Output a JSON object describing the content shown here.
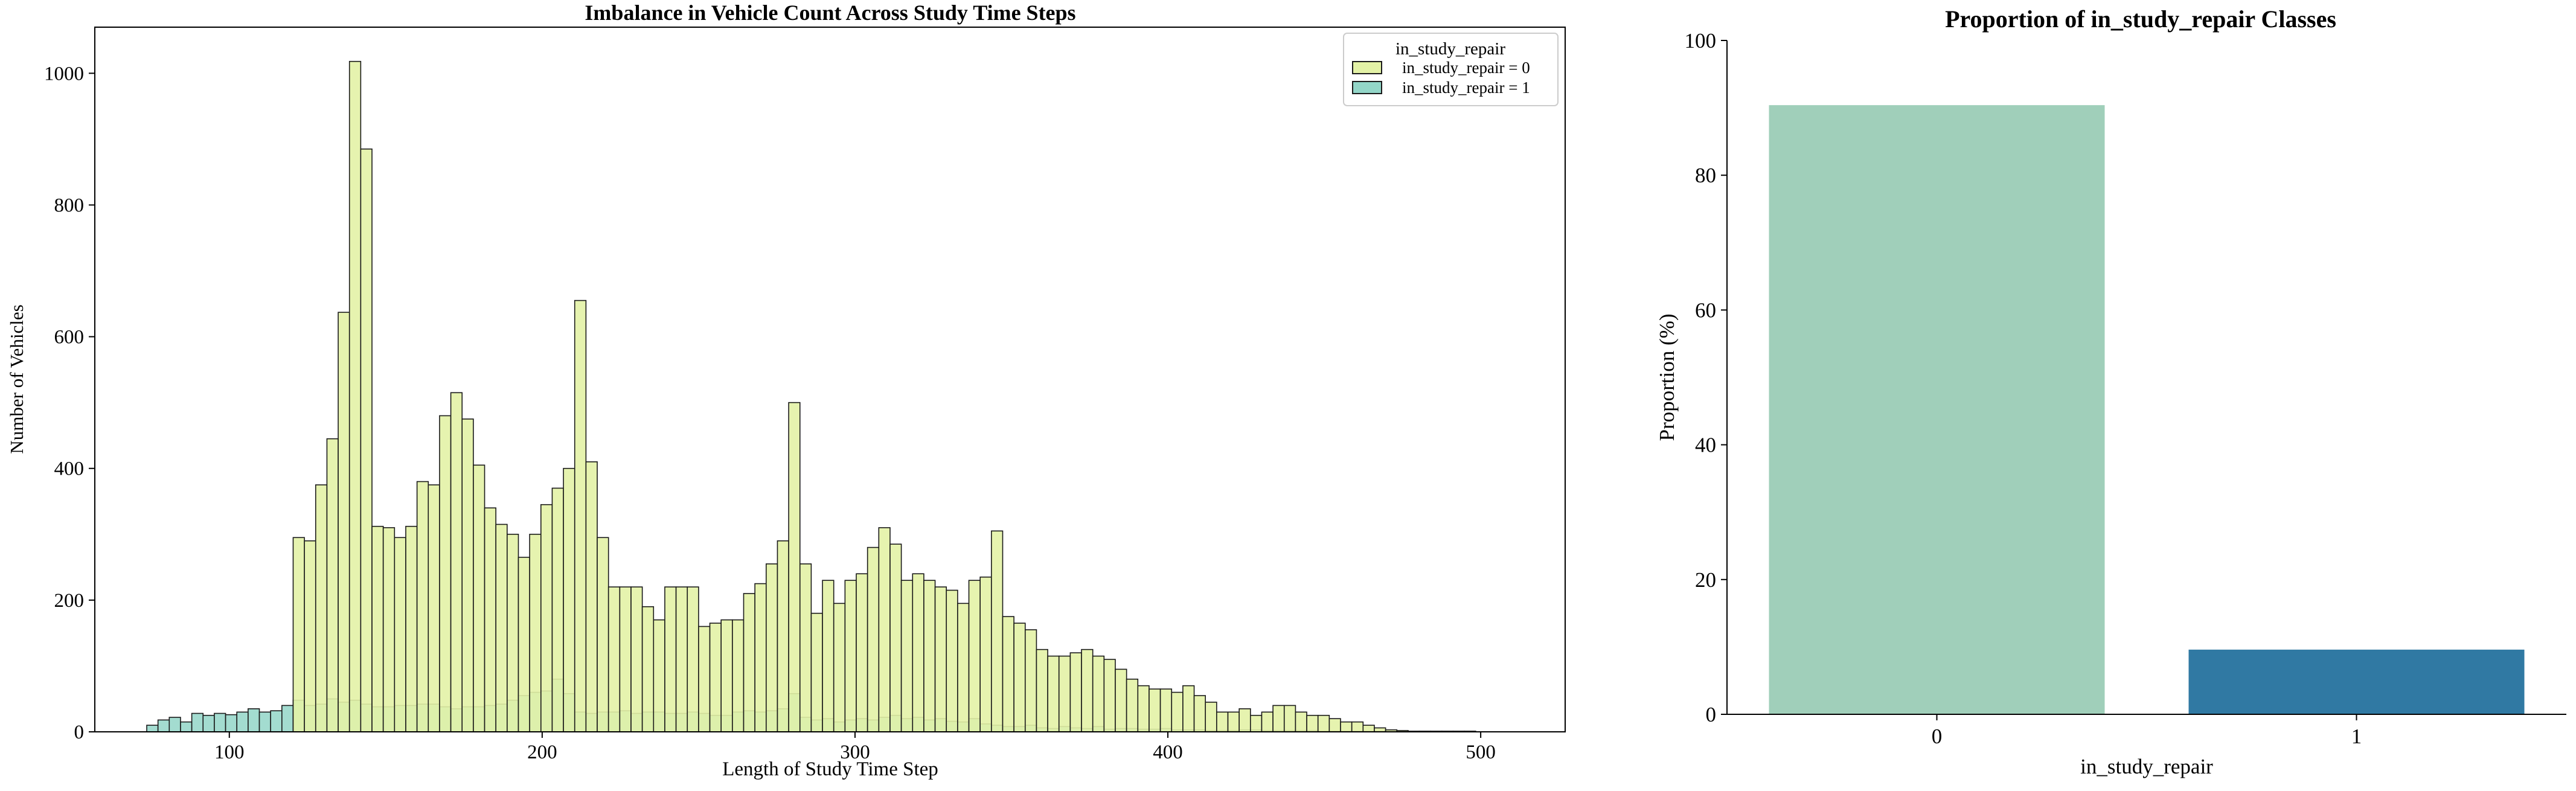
{
  "colors": {
    "hist_class0_fill": "#e3f2a6",
    "hist_class1_fill": "#93d6c8",
    "hist_edge": "#1a1a1a",
    "bar_class0": "#a0cfba",
    "bar_class1": "#3079a3",
    "axis": "#000000",
    "legend_border": "#cccccc"
  },
  "chart_data": [
    {
      "type": "bar",
      "subtype": "histogram-overlay",
      "title": "Imbalance in Vehicle Count Across Study Time Steps",
      "xlabel": "Length of Study Time Step",
      "ylabel": "Number of Vehicles",
      "xlim": [
        57,
        527
      ],
      "ylim": [
        0,
        1070
      ],
      "xticks": [
        100,
        200,
        300,
        400,
        500
      ],
      "yticks": [
        0,
        200,
        400,
        600,
        800,
        1000
      ],
      "grid": false,
      "legend": {
        "title": "in_study_repair",
        "placement": "top-right",
        "entries": [
          "in_study_repair = 0",
          "in_study_repair = 1"
        ]
      },
      "bin_width": 3.6,
      "series": [
        {
          "name": "in_study_repair = 0",
          "x_start": 120.4,
          "values": [
            295,
            290,
            375,
            445,
            637,
            1018,
            885,
            312,
            310,
            295,
            312,
            380,
            375,
            480,
            515,
            475,
            405,
            340,
            315,
            300,
            265,
            300,
            345,
            370,
            400,
            655,
            410,
            295,
            220,
            220,
            220,
            190,
            170,
            220,
            220,
            220,
            160,
            165,
            170,
            170,
            210,
            225,
            255,
            290,
            500,
            255,
            180,
            230,
            195,
            230,
            240,
            280,
            310,
            285,
            230,
            240,
            230,
            220,
            215,
            195,
            230,
            235,
            305,
            175,
            165,
            155,
            125,
            115,
            115,
            120,
            125,
            115,
            110,
            95,
            80,
            70,
            65,
            65,
            60,
            70,
            55,
            45,
            30,
            30,
            35,
            25,
            30,
            40,
            40,
            30,
            25,
            25,
            20,
            15,
            15,
            10,
            6,
            3,
            2
          ],
          "color": "#e3f2a6"
        },
        {
          "name": "in_study_repair = 1",
          "x_start": 73.6,
          "values": [
            10,
            18,
            22,
            15,
            28,
            25,
            28,
            26,
            30,
            35,
            30,
            32,
            40,
            48,
            40,
            42,
            50,
            45,
            48,
            42,
            38,
            38,
            40,
            40,
            42,
            42,
            38,
            35,
            38,
            38,
            40,
            42,
            48,
            55,
            60,
            62,
            80,
            58,
            30,
            28,
            30,
            30,
            32,
            28,
            30,
            30,
            28,
            28,
            30,
            28,
            25,
            25,
            30,
            32,
            30,
            32,
            35,
            58,
            22,
            18,
            20,
            15,
            18,
            20,
            18,
            22,
            25,
            20,
            22,
            18,
            20,
            16,
            15,
            20,
            12,
            10,
            8,
            8,
            10,
            6,
            5,
            8,
            6,
            5,
            8,
            4,
            5,
            5,
            4,
            4,
            5,
            3,
            3,
            3,
            2,
            2,
            2,
            3,
            3,
            2,
            2,
            2,
            2,
            2,
            1,
            1,
            1,
            1,
            1,
            1,
            1,
            1,
            1,
            1,
            1,
            1,
            1,
            1
          ],
          "color": "#93d6c8"
        }
      ]
    },
    {
      "type": "bar",
      "title": "Proportion of in_study_repair Classes",
      "xlabel": "in_study_repair",
      "ylabel": "Proportion (%)",
      "categories": [
        "0",
        "1"
      ],
      "values": [
        90.4,
        9.6
      ],
      "ylim": [
        0,
        100
      ],
      "yticks": [
        0,
        20,
        40,
        60,
        80,
        100
      ],
      "grid": false,
      "colors": [
        "#a0cfba",
        "#3079a3"
      ]
    }
  ]
}
